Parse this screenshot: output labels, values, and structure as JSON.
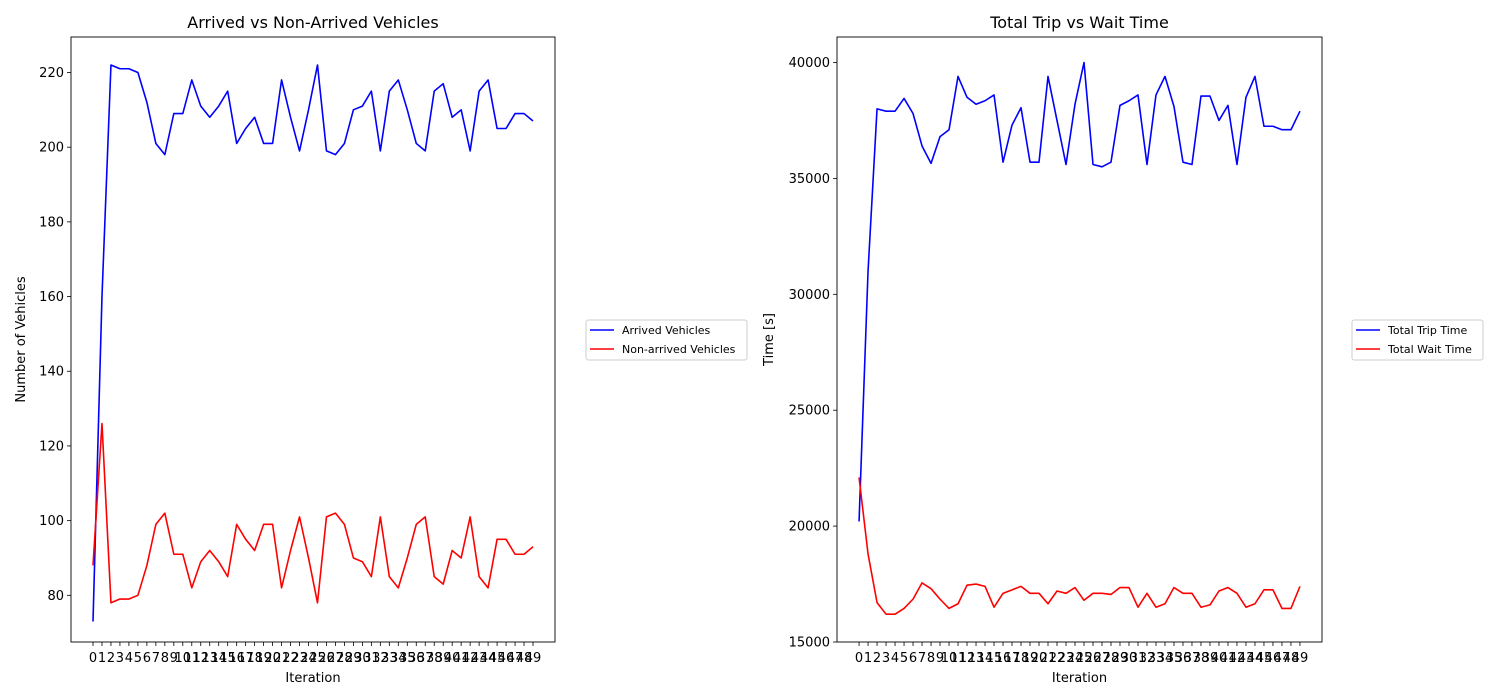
{
  "chart_data": [
    {
      "type": "line",
      "title": "Arrived vs Non-Arrived Vehicles",
      "xlabel": "Iteration",
      "ylabel": "Number of Vehicles",
      "xlim": [
        -2.45,
        51.45
      ],
      "ylim": [
        67.5,
        229.5
      ],
      "x": [
        0,
        1,
        2,
        3,
        4,
        5,
        6,
        7,
        8,
        9,
        10,
        11,
        12,
        13,
        14,
        15,
        16,
        17,
        18,
        19,
        20,
        21,
        22,
        23,
        24,
        25,
        26,
        27,
        28,
        29,
        30,
        31,
        32,
        33,
        34,
        35,
        36,
        37,
        38,
        39,
        40,
        41,
        42,
        43,
        44,
        45,
        46,
        47,
        48,
        49
      ],
      "xticks": [
        0,
        1,
        2,
        3,
        4,
        5,
        6,
        7,
        8,
        9,
        10,
        11,
        12,
        13,
        14,
        15,
        16,
        17,
        18,
        19,
        20,
        21,
        22,
        23,
        24,
        25,
        26,
        27,
        28,
        29,
        30,
        31,
        32,
        33,
        34,
        35,
        36,
        37,
        38,
        39,
        40,
        41,
        42,
        43,
        44,
        45,
        46,
        47,
        48,
        49
      ],
      "yticks": [
        80,
        100,
        120,
        140,
        160,
        180,
        200,
        220
      ],
      "grid": false,
      "legend_position": "right-outside",
      "series": [
        {
          "name": "Arrived Vehicles",
          "color": "#0000ff",
          "values": [
            73,
            160,
            222,
            221,
            221,
            220,
            212,
            201,
            198,
            209,
            209,
            218,
            211,
            208,
            211,
            215,
            201,
            205,
            208,
            201,
            201,
            218,
            208,
            199,
            210,
            222,
            199,
            198,
            201,
            210,
            211,
            215,
            199,
            215,
            218,
            210,
            201,
            199,
            215,
            217,
            208,
            210,
            199,
            215,
            218,
            205,
            205,
            209,
            209,
            207
          ]
        },
        {
          "name": "Non-arrived Vehicles",
          "color": "#ff0000",
          "values": [
            88,
            126,
            78,
            79,
            79,
            80,
            88,
            99,
            102,
            91,
            91,
            82,
            89,
            92,
            89,
            85,
            99,
            95,
            92,
            99,
            99,
            82,
            92,
            101,
            90,
            78,
            101,
            102,
            99,
            90,
            89,
            85,
            101,
            85,
            82,
            90,
            99,
            101,
            85,
            83,
            92,
            90,
            101,
            85,
            82,
            95,
            95,
            91,
            91,
            93
          ]
        }
      ]
    },
    {
      "type": "line",
      "title": "Total Trip vs Wait Time",
      "xlabel": "Iteration",
      "ylabel": "Time [s]",
      "xlim": [
        -2.45,
        51.45
      ],
      "ylim": [
        15000,
        41100
      ],
      "x": [
        0,
        1,
        2,
        3,
        4,
        5,
        6,
        7,
        8,
        9,
        10,
        11,
        12,
        13,
        14,
        15,
        16,
        17,
        18,
        19,
        20,
        21,
        22,
        23,
        24,
        25,
        26,
        27,
        28,
        29,
        30,
        31,
        32,
        33,
        34,
        35,
        36,
        37,
        38,
        39,
        40,
        41,
        42,
        43,
        44,
        45,
        46,
        47,
        48,
        49
      ],
      "xticks": [
        0,
        1,
        2,
        3,
        4,
        5,
        6,
        7,
        8,
        9,
        10,
        11,
        12,
        13,
        14,
        15,
        16,
        17,
        18,
        19,
        20,
        21,
        22,
        23,
        24,
        25,
        26,
        27,
        28,
        29,
        30,
        31,
        32,
        33,
        34,
        35,
        36,
        37,
        38,
        39,
        40,
        41,
        42,
        43,
        44,
        45,
        46,
        47,
        48,
        49
      ],
      "yticks": [
        15000,
        20000,
        25000,
        30000,
        35000,
        40000
      ],
      "grid": false,
      "legend_position": "right-outside",
      "series": [
        {
          "name": "Total Trip Time",
          "color": "#0000ff",
          "values": [
            20200,
            31000,
            38000,
            37900,
            37900,
            38450,
            37800,
            36400,
            35650,
            36800,
            37100,
            39400,
            38500,
            38200,
            38350,
            38600,
            35700,
            37300,
            38050,
            35700,
            35700,
            39400,
            37500,
            35600,
            38200,
            40000,
            35600,
            35500,
            35700,
            38150,
            38350,
            38600,
            35600,
            38600,
            39400,
            38100,
            35700,
            35600,
            38550,
            38550,
            37500,
            38150,
            35600,
            38500,
            39400,
            37250,
            37250,
            37100,
            37100,
            37900
          ]
        },
        {
          "name": "Total Wait Time",
          "color": "#ff0000",
          "values": [
            22100,
            18800,
            16700,
            16200,
            16200,
            16450,
            16850,
            17550,
            17300,
            16850,
            16450,
            16650,
            17450,
            17500,
            17400,
            16500,
            17100,
            17250,
            17400,
            17100,
            17100,
            16650,
            17200,
            17100,
            17350,
            16800,
            17100,
            17100,
            17050,
            17350,
            17350,
            16500,
            17100,
            16500,
            16650,
            17350,
            17100,
            17100,
            16500,
            16600,
            17200,
            17350,
            17100,
            16500,
            16650,
            17250,
            17250,
            16450,
            16450,
            17400
          ]
        }
      ]
    }
  ]
}
